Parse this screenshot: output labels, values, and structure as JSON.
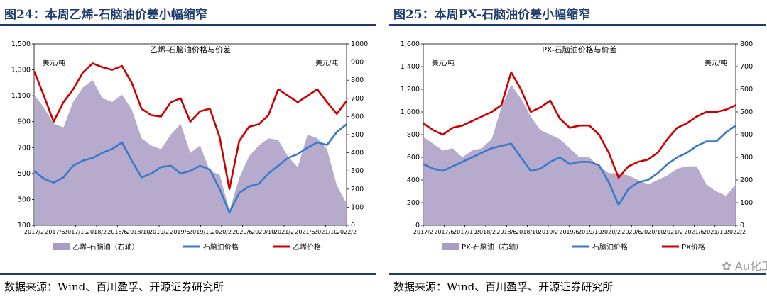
{
  "charts": [
    {
      "heading": "图24：本周乙烯-石脑油价差小幅缩窄",
      "source": "数据来源：Wind、百川盈孚、开源证券研究所",
      "chart_data": {
        "type": "line",
        "title": "乙烯-石脑油价格与价差",
        "left_unit": "美元/吨",
        "right_unit": "美元/吨",
        "ylim_left": [
          100,
          1500
        ],
        "yticks_left": [
          "100",
          "300",
          "500",
          "700",
          "900",
          "1,100",
          "1,300",
          "1,500"
        ],
        "ylim_right": [
          0,
          1000
        ],
        "yticks_right": [
          "0",
          "100",
          "200",
          "300",
          "400",
          "500",
          "600",
          "700",
          "800",
          "900",
          "1000"
        ],
        "xticks": [
          "2017/2",
          "2017/6",
          "2017/10",
          "2018/2",
          "2018/6",
          "2018/10",
          "2019/2",
          "2019/6",
          "2019/10",
          "2020/2",
          "2020/6",
          "2020/10",
          "2021/2",
          "2021/6",
          "2021/10",
          "2022/2"
        ],
        "x": [
          "2017/2",
          "2017/4",
          "2017/6",
          "2017/8",
          "2017/10",
          "2017/12",
          "2018/2",
          "2018/4",
          "2018/6",
          "2018/8",
          "2018/10",
          "2018/12",
          "2019/2",
          "2019/4",
          "2019/6",
          "2019/8",
          "2019/10",
          "2019/12",
          "2020/2",
          "2020/3",
          "2020/4",
          "2020/6",
          "2020/8",
          "2020/10",
          "2020/12",
          "2021/2",
          "2021/4",
          "2021/6",
          "2021/8",
          "2021/10",
          "2021/12",
          "2022/2",
          "2022/3"
        ],
        "series": [
          {
            "name": "乙烯-石脑油（右轴）",
            "type": "area",
            "axis": "right",
            "color": "#a99bc4",
            "values": [
              720,
              650,
              560,
              540,
              680,
              760,
              800,
              700,
              680,
              720,
              640,
              480,
              440,
              420,
              500,
              560,
              400,
              440,
              300,
              280,
              80,
              260,
              380,
              440,
              480,
              470,
              380,
              320,
              500,
              480,
              420,
              220,
              120
            ]
          },
          {
            "name": "石脑油价格",
            "type": "line",
            "axis": "left",
            "color": "#3a78c8",
            "values": [
              520,
              460,
              430,
              470,
              560,
              600,
              620,
              660,
              690,
              740,
              600,
              470,
              500,
              550,
              560,
              500,
              520,
              560,
              530,
              380,
              200,
              350,
              400,
              420,
              500,
              560,
              620,
              650,
              700,
              740,
              720,
              820,
              880
            ]
          },
          {
            "name": "乙烯价格",
            "type": "line",
            "axis": "left",
            "color": "#cc0000",
            "values": [
              1290,
              1100,
              900,
              1050,
              1150,
              1280,
              1350,
              1320,
              1300,
              1330,
              1200,
              1000,
              950,
              940,
              1050,
              1080,
              900,
              980,
              1000,
              780,
              380,
              750,
              860,
              880,
              950,
              1150,
              1100,
              1050,
              1100,
              1150,
              1050,
              960,
              1060
            ]
          }
        ],
        "legend": [
          "乙烯-石脑油（右轴）",
          "石脑油价格",
          "乙烯价格"
        ],
        "legend_position": "bottom"
      }
    },
    {
      "heading": "图25：本周PX-石脑油价差小幅缩窄",
      "source": "数据来源：Wind、百川盈孚、开源证券研究所",
      "watermark": "Au化工",
      "chart_data": {
        "type": "line",
        "title": "PX-石脑油价格与价差",
        "left_unit": "美元/吨",
        "right_unit": "美元/吨",
        "ylim_left": [
          0,
          1600
        ],
        "yticks_left": [
          "0",
          "200",
          "400",
          "600",
          "800",
          "1,000",
          "1,200",
          "1,400",
          "1,600"
        ],
        "ylim_right": [
          0,
          800
        ],
        "yticks_right": [
          "0",
          "100",
          "200",
          "300",
          "400",
          "500",
          "600",
          "700",
          "800"
        ],
        "xticks": [
          "2017/2",
          "2017/6",
          "2017/10",
          "2018/2",
          "2018/6",
          "2018/10",
          "2019/2",
          "2019/6",
          "2019/10",
          "2020/2",
          "2020/6",
          "2020/10",
          "2021/2",
          "2021/6",
          "2021/10",
          "2022/2"
        ],
        "x": [
          "2017/2",
          "2017/4",
          "2017/6",
          "2017/8",
          "2017/10",
          "2017/12",
          "2018/2",
          "2018/4",
          "2018/6",
          "2018/8",
          "2018/10",
          "2018/12",
          "2019/2",
          "2019/4",
          "2019/6",
          "2019/8",
          "2019/10",
          "2019/12",
          "2020/2",
          "2020/3",
          "2020/4",
          "2020/6",
          "2020/8",
          "2020/10",
          "2020/12",
          "2021/2",
          "2021/4",
          "2021/6",
          "2021/8",
          "2021/10",
          "2021/12",
          "2022/2",
          "2022/3"
        ],
        "series": [
          {
            "name": "PX-石脑油（右轴）",
            "type": "area",
            "axis": "right",
            "color": "#a99bc4",
            "values": [
              390,
              360,
              330,
              340,
              300,
              330,
              340,
              380,
              520,
              620,
              560,
              480,
              420,
              400,
              380,
              340,
              300,
              300,
              260,
              230,
              230,
              220,
              200,
              180,
              200,
              220,
              250,
              260,
              260,
              180,
              150,
              130,
              180
            ]
          },
          {
            "name": "石脑油价格",
            "type": "line",
            "axis": "left",
            "color": "#3a78c8",
            "values": [
              540,
              500,
              480,
              520,
              560,
              600,
              640,
              680,
              700,
              720,
              600,
              480,
              500,
              560,
              600,
              540,
              560,
              560,
              530,
              380,
              180,
              320,
              380,
              400,
              460,
              540,
              600,
              640,
              700,
              740,
              740,
              820,
              880
            ]
          },
          {
            "name": "PX价格",
            "type": "line",
            "axis": "left",
            "color": "#cc0000",
            "values": [
              900,
              840,
              800,
              860,
              880,
              920,
              960,
              1000,
              1060,
              1350,
              1200,
              1000,
              1040,
              1100,
              940,
              860,
              880,
              880,
              800,
              640,
              420,
              520,
              560,
              580,
              640,
              760,
              860,
              900,
              960,
              1000,
              1000,
              1020,
              1060
            ]
          }
        ],
        "legend": [
          "PX-石脑油（右轴）",
          "石脑油价格",
          "PX价格"
        ],
        "legend_position": "bottom"
      }
    }
  ]
}
